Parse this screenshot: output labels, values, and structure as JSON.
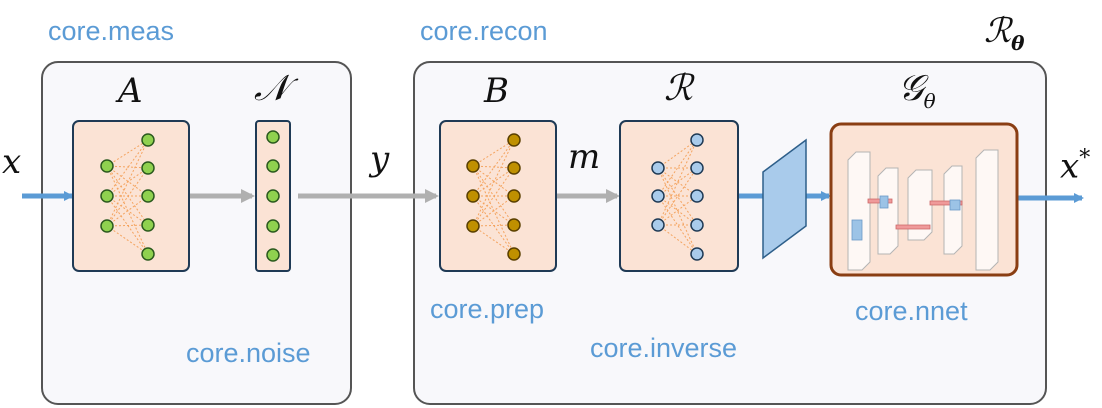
{
  "modules": {
    "meas": "core.meas",
    "noise": "core.noise",
    "recon": "core.recon",
    "prep": "core.prep",
    "inverse": "core.inverse",
    "nnet": "core.nnet"
  },
  "symbols": {
    "input": "x",
    "meas_op": "A",
    "noise_op": "𝒩",
    "measurement": "y",
    "prep_op": "B",
    "preprocessed": "m",
    "inverse_op": "ℛ",
    "nnet_op": "𝒢",
    "nnet_sub": "θ",
    "output": "x",
    "output_sup": "*",
    "recon_op": "ℛ",
    "recon_sub": "θ"
  },
  "colors": {
    "module_label": "#5b9bd5",
    "block_fill": "#fbe3d5",
    "block_border": "#1f3a55",
    "nnet_border": "#8a3e13",
    "container_fill": "#f8f8fb",
    "container_border": "#555555",
    "arrow_blue": "#5b9bd5",
    "arrow_gray": "#b0b0b0",
    "node_green": "#8fd14f",
    "node_gold": "#bf9000",
    "node_blue": "#a9cbeb"
  }
}
